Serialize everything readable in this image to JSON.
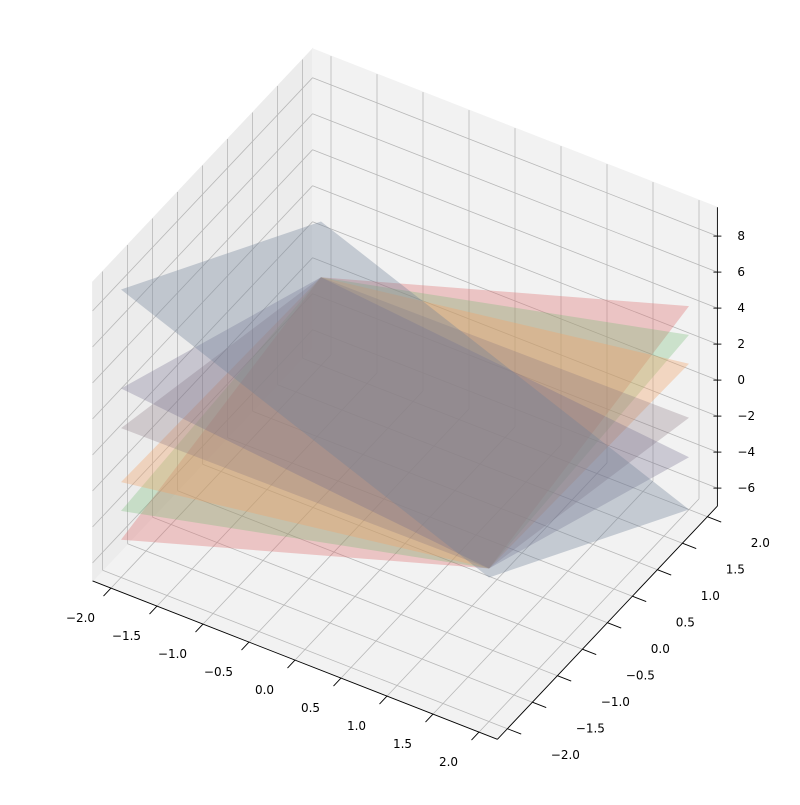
{
  "chart_data": {
    "type": "surface3d",
    "title": "",
    "xlabel": "",
    "ylabel": "",
    "zlabel": "",
    "xlim": [
      -2.2,
      2.2
    ],
    "ylim": [
      -2.2,
      2.2
    ],
    "zlim": [
      -7,
      9.6
    ],
    "grid": true,
    "view": {
      "elev": 30,
      "azim": -60
    },
    "x_ticks": [
      "−2.0",
      "−1.5",
      "−1.0",
      "−0.5",
      "0.0",
      "0.5",
      "1.0",
      "1.5",
      "2.0"
    ],
    "x_tick_values": [
      -2.0,
      -1.5,
      -1.0,
      -0.5,
      0.0,
      0.5,
      1.0,
      1.5,
      2.0
    ],
    "y_ticks": [
      "−2.0",
      "−1.5",
      "−1.0",
      "−0.5",
      "0.0",
      "0.5",
      "1.0",
      "1.5",
      "2.0"
    ],
    "y_tick_values": [
      -2.0,
      -1.5,
      -1.0,
      -0.5,
      0.0,
      0.5,
      1.0,
      1.5,
      2.0
    ],
    "z_ticks": [
      "−6",
      "−4",
      "−2",
      "0",
      "2",
      "4",
      "6",
      "8"
    ],
    "z_tick_values": [
      -6,
      -4,
      -2,
      0,
      2,
      4,
      6,
      8
    ],
    "domain": {
      "x": [
        -2,
        2
      ],
      "y": [
        -2,
        2
      ]
    },
    "planes": [
      {
        "a": 1.6,
        "b": 0.7,
        "c": -0.3,
        "color": "#e07070",
        "alpha": 0.35
      },
      {
        "a": 1.2,
        "b": 0.3,
        "c": -0.3,
        "color": "#70b870",
        "alpha": 0.3
      },
      {
        "a": 0.8,
        "b": -0.1,
        "c": -0.3,
        "color": "#f4a468",
        "alpha": 0.35
      },
      {
        "a": 0.05,
        "b": -0.85,
        "c": -0.3,
        "color": "#8a7880",
        "alpha": 0.3
      },
      {
        "a": -0.5,
        "b": -1.4,
        "c": -0.3,
        "color": "#706a8a",
        "alpha": 0.3
      },
      {
        "a": -2.0,
        "b": -2.0,
        "c": 1.0,
        "color": "#6f8299",
        "alpha": 0.35
      }
    ]
  }
}
